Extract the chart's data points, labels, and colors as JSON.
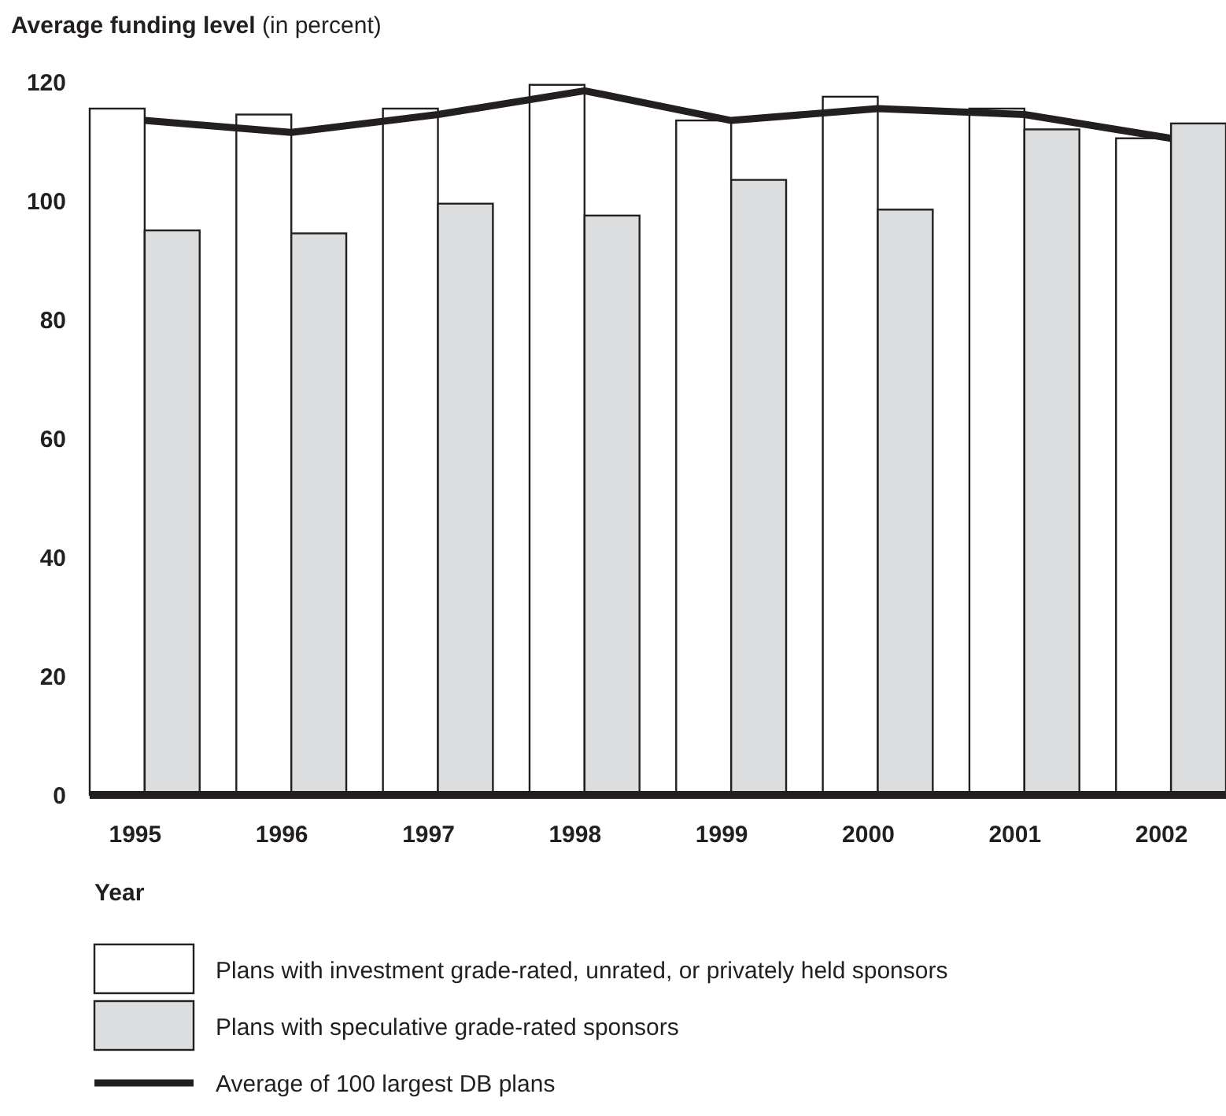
{
  "chart_data": {
    "type": "bar",
    "title": "Average funding level",
    "subtitle": "(in percent)",
    "xlabel": "Year",
    "categories": [
      "1995",
      "1996",
      "1997",
      "1998",
      "1999",
      "2000",
      "2001",
      "2002"
    ],
    "series": [
      {
        "name": "Plans with investment grade-rated, unrated, or privately held sponsors",
        "color": "#ffffff",
        "values": [
          115.5,
          114.5,
          115.5,
          119.5,
          113.5,
          117.5,
          115.5,
          110.5
        ]
      },
      {
        "name": "Plans with speculative grade-rated sponsors",
        "color": "#dcdddf",
        "values": [
          95,
          94.5,
          99.5,
          97.5,
          103.5,
          98.5,
          112,
          113
        ]
      },
      {
        "name": "Average of 100 largest DB plans",
        "type": "line",
        "color": "#231f20",
        "values": [
          113.5,
          111.5,
          114.5,
          118.5,
          113.5,
          115.5,
          114.5,
          110.5
        ]
      }
    ],
    "ylim": [
      0,
      120
    ],
    "yticks": [
      0,
      20,
      40,
      60,
      80,
      100,
      120
    ],
    "grid": false,
    "legend": "bottom",
    "marker": "none"
  }
}
